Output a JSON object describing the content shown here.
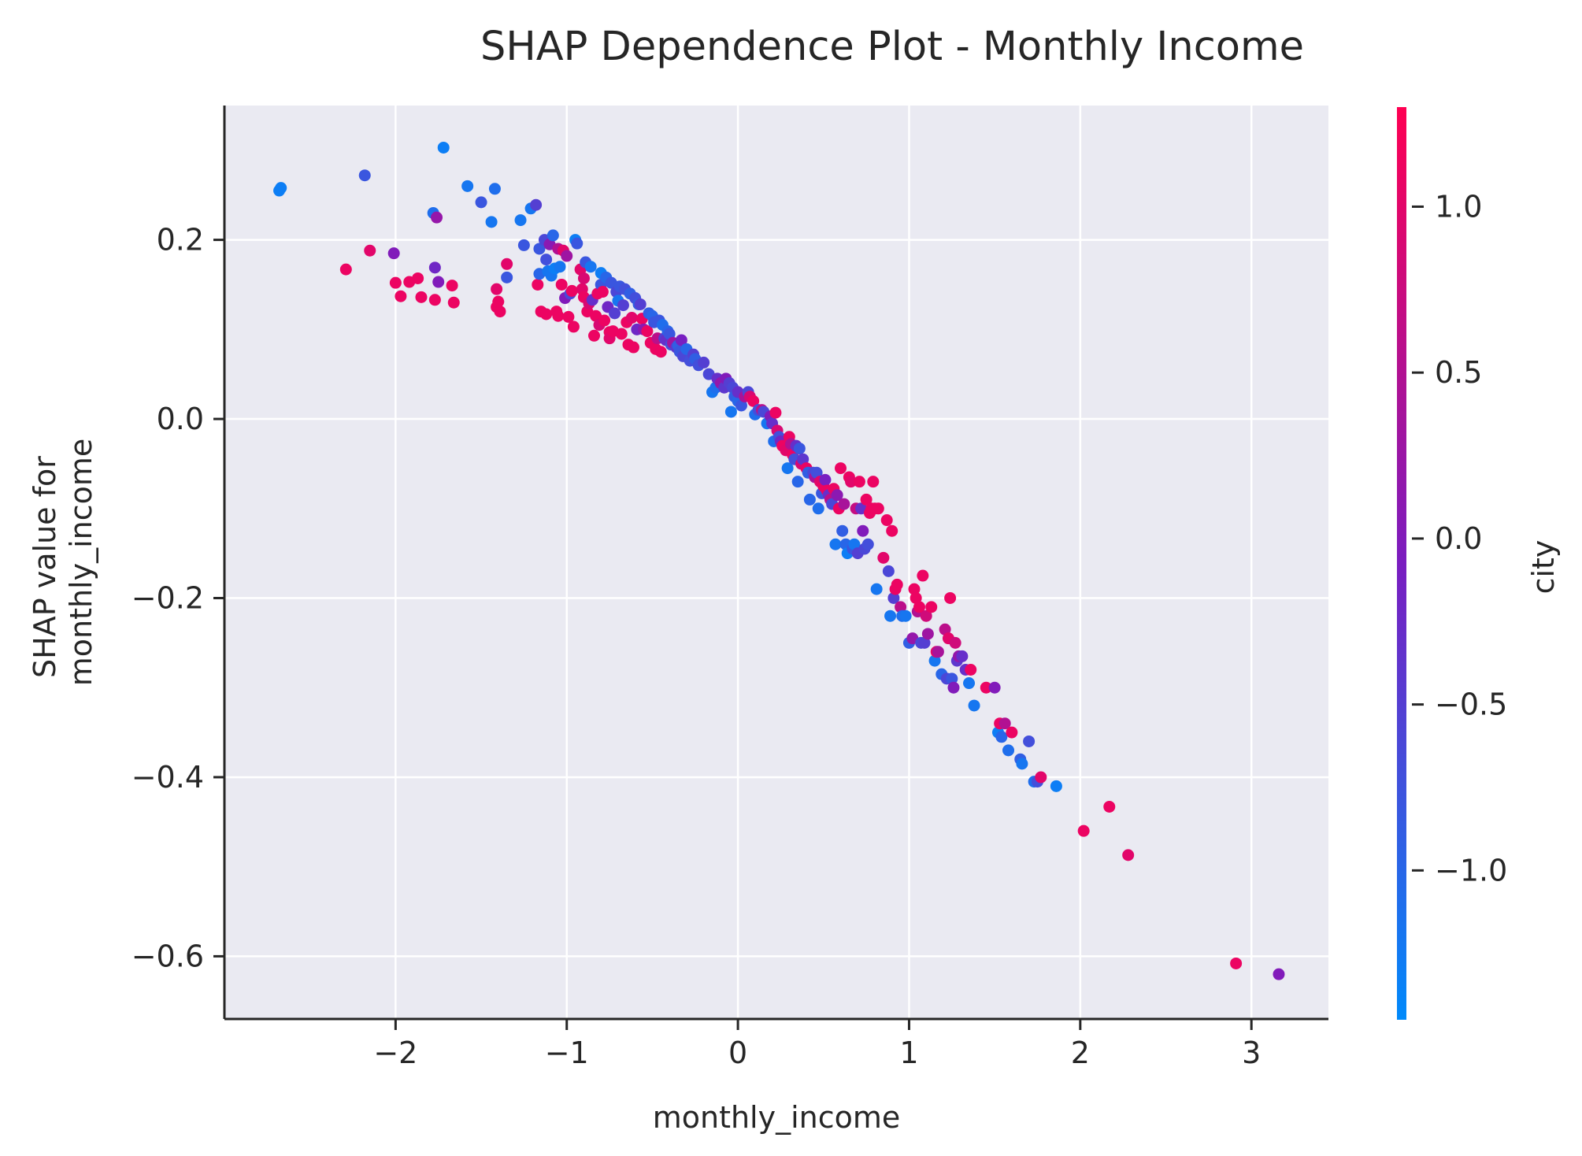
{
  "chart_data": {
    "type": "scatter",
    "title": "SHAP Dependence Plot - Monthly Income",
    "xlabel": "monthly_income",
    "ylabel_line1": "SHAP value for",
    "ylabel_line2": "monthly_income",
    "xlim": [
      -3.0,
      3.45
    ],
    "ylim": [
      -0.67,
      0.35
    ],
    "xticks": [
      -2,
      -1,
      0,
      1,
      2,
      3
    ],
    "xtick_labels": [
      "−2",
      "−1",
      "0",
      "1",
      "2",
      "3"
    ],
    "yticks": [
      0.2,
      0.0,
      -0.2,
      -0.4,
      -0.6
    ],
    "ytick_labels": [
      "0.2",
      "0.0",
      "−0.2",
      "−0.4",
      "−0.6"
    ],
    "grid": true,
    "background_color": "#eaeaf2",
    "colorbar": {
      "label": "city",
      "range": [
        -1.45,
        1.3
      ],
      "ticks": [
        1.0,
        0.5,
        0.0,
        -0.5,
        -1.0
      ],
      "tick_labels": [
        "1.0",
        "0.5",
        "0.0",
        "−0.5",
        "−1.0"
      ],
      "colormap": [
        "#008afb",
        "#7a1dc0",
        "#ff0052"
      ]
    },
    "points": [
      [
        -2.68,
        0.255,
        -1.3
      ],
      [
        -2.67,
        0.258,
        -1.3
      ],
      [
        -2.29,
        0.167,
        1.1
      ],
      [
        -2.18,
        0.272,
        -0.8
      ],
      [
        -2.15,
        0.188,
        1.0
      ],
      [
        -2.01,
        0.185,
        0.0
      ],
      [
        -2.0,
        0.152,
        1.1
      ],
      [
        -1.97,
        0.137,
        1.1
      ],
      [
        -1.92,
        0.153,
        1.1
      ],
      [
        -1.87,
        0.157,
        1.1
      ],
      [
        -1.85,
        0.136,
        1.1
      ],
      [
        -1.78,
        0.23,
        -1.1
      ],
      [
        -1.77,
        0.169,
        -0.2
      ],
      [
        -1.77,
        0.133,
        1.1
      ],
      [
        -1.76,
        0.225,
        0.2
      ],
      [
        -1.75,
        0.153,
        0.0
      ],
      [
        -1.72,
        0.303,
        -1.3
      ],
      [
        -1.67,
        0.149,
        1.1
      ],
      [
        -1.66,
        0.13,
        1.1
      ],
      [
        -1.58,
        0.26,
        -1.2
      ],
      [
        -1.5,
        0.242,
        -0.8
      ],
      [
        -1.44,
        0.22,
        -1.2
      ],
      [
        -1.42,
        0.257,
        -1.1
      ],
      [
        -1.41,
        0.145,
        1.0
      ],
      [
        -1.41,
        0.125,
        1.1
      ],
      [
        -1.4,
        0.131,
        1.1
      ],
      [
        -1.39,
        0.12,
        1.1
      ],
      [
        -1.35,
        0.173,
        1.0
      ],
      [
        -1.35,
        0.158,
        -0.8
      ],
      [
        -1.27,
        0.222,
        -1.2
      ],
      [
        -1.25,
        0.194,
        -0.8
      ],
      [
        -1.21,
        0.235,
        -1.2
      ],
      [
        -1.18,
        0.239,
        -0.5
      ],
      [
        -1.17,
        0.15,
        1.1
      ],
      [
        -1.16,
        0.162,
        -1.0
      ],
      [
        -1.16,
        0.19,
        -0.8
      ],
      [
        -1.15,
        0.12,
        1.1
      ],
      [
        -1.13,
        0.2,
        -0.6
      ],
      [
        -1.12,
        0.178,
        -0.7
      ],
      [
        -1.12,
        0.117,
        1.1
      ],
      [
        -1.11,
        0.165,
        -1.2
      ],
      [
        -1.1,
        0.195,
        0.1
      ],
      [
        -1.09,
        0.16,
        -1.2
      ],
      [
        -1.08,
        0.205,
        -1.0
      ],
      [
        -1.07,
        0.168,
        -1.3
      ],
      [
        -1.06,
        0.12,
        1.1
      ],
      [
        -1.05,
        0.19,
        0.5
      ],
      [
        -1.05,
        0.115,
        1.1
      ],
      [
        -1.04,
        0.17,
        -1.2
      ],
      [
        -1.03,
        0.15,
        1.1
      ],
      [
        -1.02,
        0.188,
        1.0
      ],
      [
        -1.01,
        0.135,
        0.0
      ],
      [
        -1.0,
        0.182,
        0.3
      ],
      [
        -0.99,
        0.114,
        1.1
      ],
      [
        -0.98,
        0.14,
        -0.6
      ],
      [
        -0.97,
        0.143,
        1.1
      ],
      [
        -0.96,
        0.103,
        1.1
      ],
      [
        -0.95,
        0.2,
        -1.3
      ],
      [
        -0.94,
        0.196,
        -0.8
      ],
      [
        -0.92,
        0.167,
        1.0
      ],
      [
        -0.91,
        0.145,
        1.0
      ],
      [
        -0.9,
        0.157,
        0.9
      ],
      [
        -0.9,
        0.136,
        1.1
      ],
      [
        -0.89,
        0.175,
        -0.8
      ],
      [
        -0.88,
        0.12,
        1.1
      ],
      [
        -0.87,
        0.129,
        0.9
      ],
      [
        -0.86,
        0.17,
        -1.2
      ],
      [
        -0.85,
        0.133,
        -0.3
      ],
      [
        -0.84,
        0.093,
        1.1
      ],
      [
        -0.83,
        0.115,
        1.1
      ],
      [
        -0.82,
        0.14,
        1.1
      ],
      [
        -0.81,
        0.105,
        0.9
      ],
      [
        -0.8,
        0.163,
        -1.3
      ],
      [
        -0.8,
        0.15,
        -0.8
      ],
      [
        -0.79,
        0.142,
        1.1
      ],
      [
        -0.78,
        0.11,
        1.1
      ],
      [
        -0.77,
        0.158,
        -1.0
      ],
      [
        -0.76,
        0.125,
        -0.2
      ],
      [
        -0.75,
        0.097,
        1.1
      ],
      [
        -0.75,
        0.09,
        1.0
      ],
      [
        -0.74,
        0.152,
        -0.8
      ],
      [
        -0.73,
        0.098,
        1.1
      ],
      [
        -0.72,
        0.118,
        -0.5
      ],
      [
        -0.71,
        0.142,
        -0.6
      ],
      [
        -0.7,
        0.132,
        -1.2
      ],
      [
        -0.69,
        0.148,
        -0.8
      ],
      [
        -0.68,
        0.095,
        1.1
      ],
      [
        -0.67,
        0.127,
        -0.5
      ],
      [
        -0.66,
        0.145,
        -0.7
      ],
      [
        -0.65,
        0.108,
        1.1
      ],
      [
        -0.64,
        0.083,
        1.1
      ],
      [
        -0.63,
        0.14,
        -0.9
      ],
      [
        -0.62,
        0.113,
        1.0
      ],
      [
        -0.61,
        0.08,
        1.1
      ],
      [
        -0.6,
        0.135,
        -0.7
      ],
      [
        -0.59,
        0.1,
        -0.2
      ],
      [
        -0.58,
        0.128,
        -0.9
      ],
      [
        -0.57,
        0.128,
        -0.5
      ],
      [
        -0.56,
        0.112,
        1.1
      ],
      [
        -0.55,
        0.1,
        0.1
      ],
      [
        -0.53,
        0.098,
        1.1
      ],
      [
        -0.52,
        0.118,
        -0.9
      ],
      [
        -0.51,
        0.085,
        1.1
      ],
      [
        -0.5,
        0.115,
        -1.0
      ],
      [
        -0.49,
        0.108,
        -0.8
      ],
      [
        -0.48,
        0.078,
        1.1
      ],
      [
        -0.47,
        0.09,
        0.6
      ],
      [
        -0.46,
        0.11,
        -0.8
      ],
      [
        -0.45,
        0.075,
        1.1
      ],
      [
        -0.44,
        0.105,
        -1.1
      ],
      [
        -0.43,
        0.09,
        -0.5
      ],
      [
        -0.42,
        0.088,
        -0.3
      ],
      [
        -0.41,
        0.098,
        -1.0
      ],
      [
        -0.4,
        0.095,
        -0.8
      ],
      [
        -0.39,
        0.083,
        -0.7
      ],
      [
        -0.38,
        0.085,
        0.3
      ],
      [
        -0.36,
        0.08,
        -0.4
      ],
      [
        -0.35,
        0.082,
        -0.9
      ],
      [
        -0.34,
        0.075,
        -0.8
      ],
      [
        -0.33,
        0.088,
        -0.1
      ],
      [
        -0.32,
        0.07,
        -0.6
      ],
      [
        -0.3,
        0.078,
        -1.0
      ],
      [
        -0.28,
        0.065,
        -0.7
      ],
      [
        -0.26,
        0.072,
        -0.5
      ],
      [
        -0.25,
        0.067,
        -0.9
      ],
      [
        -0.23,
        0.06,
        -0.7
      ],
      [
        -0.2,
        0.063,
        -0.5
      ],
      [
        -0.17,
        0.05,
        -0.6
      ],
      [
        -0.15,
        0.03,
        -1.2
      ],
      [
        -0.13,
        0.035,
        -1.1
      ],
      [
        -0.12,
        0.045,
        -0.3
      ],
      [
        -0.1,
        0.04,
        0.2
      ],
      [
        -0.08,
        0.035,
        -0.4
      ],
      [
        -0.07,
        0.045,
        0.0
      ],
      [
        -0.05,
        0.04,
        -0.5
      ],
      [
        -0.04,
        0.008,
        -1.2
      ],
      [
        -0.03,
        0.035,
        -0.6
      ],
      [
        -0.02,
        0.025,
        -0.9
      ],
      [
        0.0,
        0.02,
        -1.0
      ],
      [
        0.0,
        0.03,
        -0.3
      ],
      [
        0.02,
        0.015,
        -0.8
      ],
      [
        0.04,
        0.025,
        0.4
      ],
      [
        0.06,
        0.03,
        -0.6
      ],
      [
        0.07,
        0.025,
        0.9
      ],
      [
        0.09,
        0.02,
        1.1
      ],
      [
        0.1,
        0.005,
        -1.1
      ],
      [
        0.12,
        0.01,
        -0.7
      ],
      [
        0.14,
        0.01,
        0.6
      ],
      [
        0.15,
        0.008,
        -0.6
      ],
      [
        0.17,
        -0.005,
        -1.2
      ],
      [
        0.19,
        0.003,
        0.0
      ],
      [
        0.2,
        -0.005,
        -0.3
      ],
      [
        0.21,
        -0.025,
        -1.1
      ],
      [
        0.22,
        0.007,
        1.1
      ],
      [
        0.23,
        -0.013,
        0.9
      ],
      [
        0.24,
        -0.02,
        -0.7
      ],
      [
        0.25,
        -0.025,
        -0.2
      ],
      [
        0.26,
        -0.03,
        1.1
      ],
      [
        0.28,
        -0.035,
        1.0
      ],
      [
        0.29,
        -0.055,
        -1.2
      ],
      [
        0.3,
        -0.02,
        1.1
      ],
      [
        0.31,
        -0.028,
        0.5
      ],
      [
        0.32,
        -0.04,
        1.1
      ],
      [
        0.33,
        -0.045,
        -0.7
      ],
      [
        0.34,
        -0.03,
        -0.3
      ],
      [
        0.35,
        -0.07,
        -1.0
      ],
      [
        0.36,
        -0.033,
        -0.8
      ],
      [
        0.37,
        -0.05,
        0.9
      ],
      [
        0.38,
        -0.045,
        -0.4
      ],
      [
        0.4,
        -0.055,
        1.1
      ],
      [
        0.41,
        -0.06,
        -0.9
      ],
      [
        0.42,
        -0.09,
        -1.0
      ],
      [
        0.44,
        -0.06,
        -0.6
      ],
      [
        0.45,
        -0.065,
        0.4
      ],
      [
        0.46,
        -0.06,
        -0.7
      ],
      [
        0.47,
        -0.1,
        -1.1
      ],
      [
        0.48,
        -0.07,
        1.0
      ],
      [
        0.49,
        -0.083,
        -0.8
      ],
      [
        0.5,
        -0.075,
        1.1
      ],
      [
        0.51,
        -0.068,
        -0.1
      ],
      [
        0.52,
        -0.08,
        1.1
      ],
      [
        0.53,
        -0.085,
        -0.3
      ],
      [
        0.54,
        -0.09,
        0.6
      ],
      [
        0.55,
        -0.095,
        -0.6
      ],
      [
        0.56,
        -0.078,
        1.1
      ],
      [
        0.57,
        -0.14,
        -1.2
      ],
      [
        0.58,
        -0.085,
        0.1
      ],
      [
        0.59,
        -0.1,
        1.1
      ],
      [
        0.6,
        -0.055,
        1.1
      ],
      [
        0.61,
        -0.125,
        -0.9
      ],
      [
        0.62,
        -0.095,
        0.4
      ],
      [
        0.63,
        -0.14,
        -1.0
      ],
      [
        0.64,
        -0.15,
        -1.3
      ],
      [
        0.65,
        -0.065,
        1.1
      ],
      [
        0.66,
        -0.07,
        1.0
      ],
      [
        0.67,
        -0.145,
        -0.8
      ],
      [
        0.68,
        -0.14,
        -1.2
      ],
      [
        0.69,
        -0.1,
        0.7
      ],
      [
        0.7,
        -0.15,
        -0.5
      ],
      [
        0.71,
        -0.07,
        1.1
      ],
      [
        0.72,
        -0.1,
        -0.3
      ],
      [
        0.73,
        -0.125,
        0.0
      ],
      [
        0.74,
        -0.145,
        -0.6
      ],
      [
        0.75,
        -0.09,
        1.1
      ],
      [
        0.76,
        -0.14,
        -0.7
      ],
      [
        0.77,
        -0.105,
        1.1
      ],
      [
        0.78,
        -0.1,
        1.1
      ],
      [
        0.79,
        -0.07,
        1.1
      ],
      [
        0.8,
        -0.1,
        1.1
      ],
      [
        0.81,
        -0.19,
        -1.2
      ],
      [
        0.82,
        -0.1,
        1.1
      ],
      [
        0.85,
        -0.155,
        1.0
      ],
      [
        0.87,
        -0.113,
        1.1
      ],
      [
        0.88,
        -0.17,
        -0.6
      ],
      [
        0.89,
        -0.22,
        -1.2
      ],
      [
        0.9,
        -0.125,
        1.1
      ],
      [
        0.91,
        -0.2,
        -0.5
      ],
      [
        0.92,
        -0.19,
        1.1
      ],
      [
        0.93,
        -0.185,
        1.1
      ],
      [
        0.95,
        -0.21,
        0.6
      ],
      [
        0.96,
        -0.22,
        -1.1
      ],
      [
        0.98,
        -0.22,
        -1.2
      ],
      [
        1.0,
        -0.25,
        -0.9
      ],
      [
        1.02,
        -0.245,
        0.2
      ],
      [
        1.03,
        -0.19,
        1.1
      ],
      [
        1.04,
        -0.2,
        1.1
      ],
      [
        1.05,
        -0.215,
        0.5
      ],
      [
        1.06,
        -0.21,
        1.1
      ],
      [
        1.07,
        -0.25,
        -0.6
      ],
      [
        1.08,
        -0.175,
        1.1
      ],
      [
        1.09,
        -0.25,
        -0.5
      ],
      [
        1.1,
        -0.22,
        0.8
      ],
      [
        1.11,
        -0.24,
        0.3
      ],
      [
        1.13,
        -0.21,
        1.1
      ],
      [
        1.15,
        -0.27,
        -1.2
      ],
      [
        1.16,
        -0.26,
        1.0
      ],
      [
        1.17,
        -0.26,
        0.4
      ],
      [
        1.19,
        -0.285,
        -1.0
      ],
      [
        1.21,
        -0.235,
        0.6
      ],
      [
        1.22,
        -0.29,
        -0.6
      ],
      [
        1.23,
        -0.245,
        1.0
      ],
      [
        1.24,
        -0.2,
        1.1
      ],
      [
        1.25,
        -0.29,
        -0.8
      ],
      [
        1.26,
        -0.3,
        0.0
      ],
      [
        1.27,
        -0.25,
        0.8
      ],
      [
        1.28,
        -0.27,
        -0.4
      ],
      [
        1.29,
        -0.265,
        0.2
      ],
      [
        1.31,
        -0.265,
        -0.3
      ],
      [
        1.33,
        -0.28,
        -0.3
      ],
      [
        1.35,
        -0.295,
        -1.2
      ],
      [
        1.36,
        -0.28,
        1.1
      ],
      [
        1.38,
        -0.32,
        -1.2
      ],
      [
        1.45,
        -0.3,
        1.1
      ],
      [
        1.5,
        -0.3,
        0.0
      ],
      [
        1.52,
        -0.35,
        -1.3
      ],
      [
        1.53,
        -0.34,
        1.1
      ],
      [
        1.54,
        -0.355,
        -1.0
      ],
      [
        1.56,
        -0.34,
        0.5
      ],
      [
        1.58,
        -0.37,
        -1.1
      ],
      [
        1.6,
        -0.35,
        1.1
      ],
      [
        1.65,
        -0.38,
        -0.9
      ],
      [
        1.66,
        -0.385,
        -1.2
      ],
      [
        1.7,
        -0.36,
        -0.7
      ],
      [
        1.73,
        -0.405,
        -1.1
      ],
      [
        1.75,
        -0.405,
        -0.7
      ],
      [
        1.77,
        -0.4,
        1.0
      ],
      [
        1.86,
        -0.41,
        -1.3
      ],
      [
        2.02,
        -0.46,
        1.1
      ],
      [
        2.17,
        -0.433,
        1.1
      ],
      [
        2.28,
        -0.487,
        1.0
      ],
      [
        2.91,
        -0.608,
        1.1
      ],
      [
        3.16,
        -0.62,
        0.0
      ]
    ]
  }
}
